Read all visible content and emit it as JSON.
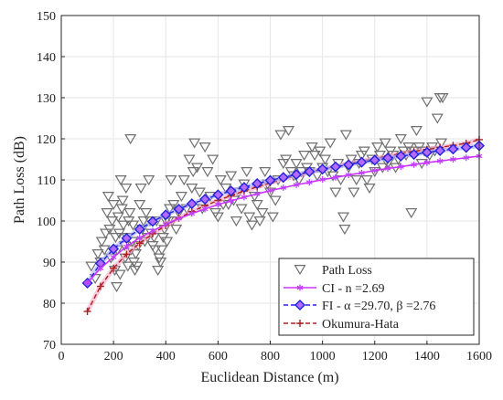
{
  "colors": {
    "path_loss": "#707070",
    "ci": "#cc33ff",
    "ci_marker": "#c040ff",
    "fi": "#2222dd",
    "fi_fill": "#b36bff",
    "fi_halo": "#a8a8ff",
    "okumura": "#aa2222",
    "okumura_halo": "#f4a4c4",
    "grid": "#e6e6e6",
    "axis": "#262626"
  },
  "chart_data": {
    "type": "scatter",
    "title": "",
    "xlabel": "Euclidean Distance (m)",
    "ylabel": "Path Loss (dB)",
    "xlim": [
      0,
      1600
    ],
    "ylim": [
      70,
      150
    ],
    "xticks": [
      "0",
      "200",
      "400",
      "600",
      "800",
      "1000",
      "1200",
      "1400",
      "1600"
    ],
    "yticks": [
      "70",
      "80",
      "90",
      "100",
      "110",
      "120",
      "130",
      "140",
      "150"
    ],
    "grid": true,
    "legend_position": "bottom-right",
    "series": [
      {
        "name": "Path Loss",
        "kind": "scatter",
        "marker": "triangle-down",
        "points": [
          [
            115,
            89
          ],
          [
            130,
            86
          ],
          [
            140,
            92
          ],
          [
            150,
            90
          ],
          [
            155,
            95
          ],
          [
            165,
            93
          ],
          [
            170,
            97
          ],
          [
            175,
            102
          ],
          [
            180,
            106
          ],
          [
            185,
            98
          ],
          [
            190,
            91
          ],
          [
            195,
            100
          ],
          [
            200,
            104
          ],
          [
            205,
            88
          ],
          [
            208,
            96
          ],
          [
            212,
            84
          ],
          [
            215,
            93
          ],
          [
            218,
            101
          ],
          [
            222,
            97
          ],
          [
            225,
            87
          ],
          [
            228,
            110
          ],
          [
            232,
            103
          ],
          [
            235,
            105
          ],
          [
            238,
            99
          ],
          [
            242,
            94
          ],
          [
            245,
            91
          ],
          [
            248,
            108
          ],
          [
            252,
            96
          ],
          [
            255,
            89
          ],
          [
            258,
            100
          ],
          [
            262,
            102
          ],
          [
            265,
            120
          ],
          [
            268,
            93
          ],
          [
            272,
            95
          ],
          [
            275,
            99
          ],
          [
            278,
            90
          ],
          [
            282,
            88
          ],
          [
            285,
            92
          ],
          [
            290,
            89
          ],
          [
            295,
            94
          ],
          [
            300,
            104
          ],
          [
            305,
            108
          ],
          [
            310,
            98
          ],
          [
            315,
            100
          ],
          [
            320,
            95
          ],
          [
            325,
            102
          ],
          [
            330,
            96
          ],
          [
            335,
            110
          ],
          [
            340,
            100
          ],
          [
            345,
            97
          ],
          [
            350,
            94
          ],
          [
            355,
            96
          ],
          [
            360,
            93
          ],
          [
            365,
            100
          ],
          [
            370,
            88
          ],
          [
            375,
            91
          ],
          [
            380,
            90
          ],
          [
            385,
            93
          ],
          [
            390,
            96
          ],
          [
            395,
            98
          ],
          [
            400,
            100
          ],
          [
            405,
            95
          ],
          [
            410,
            100
          ],
          [
            415,
            103
          ],
          [
            420,
            110
          ],
          [
            425,
            100
          ],
          [
            430,
            104
          ],
          [
            440,
            98
          ],
          [
            450,
            102
          ],
          [
            460,
            106
          ],
          [
            470,
            110
          ],
          [
            480,
            103
          ],
          [
            490,
            115
          ],
          [
            500,
            108
          ],
          [
            505,
            112
          ],
          [
            510,
            119
          ],
          [
            520,
            113
          ],
          [
            530,
            107
          ],
          [
            540,
            103
          ],
          [
            550,
            118
          ],
          [
            560,
            112
          ],
          [
            570,
            106
          ],
          [
            580,
            115
          ],
          [
            590,
            102
          ],
          [
            600,
            101
          ],
          [
            610,
            110
          ],
          [
            620,
            104
          ],
          [
            630,
            108
          ],
          [
            640,
            104
          ],
          [
            650,
            111
          ],
          [
            660,
            105
          ],
          [
            670,
            100
          ],
          [
            680,
            107
          ],
          [
            690,
            103
          ],
          [
            700,
            109
          ],
          [
            710,
            112
          ],
          [
            720,
            101
          ],
          [
            730,
            99
          ],
          [
            740,
            106
          ],
          [
            750,
            104
          ],
          [
            760,
            100
          ],
          [
            770,
            102
          ],
          [
            780,
            112
          ],
          [
            790,
            109
          ],
          [
            800,
            107
          ],
          [
            810,
            101
          ],
          [
            820,
            105
          ],
          [
            830,
            110
          ],
          [
            840,
            121
          ],
          [
            850,
            114
          ],
          [
            860,
            115
          ],
          [
            870,
            122
          ],
          [
            880,
            112
          ],
          [
            890,
            111
          ],
          [
            900,
            114
          ],
          [
            910,
            110
          ],
          [
            920,
            112
          ],
          [
            930,
            116
          ],
          [
            940,
            113
          ],
          [
            950,
            112
          ],
          [
            960,
            118
          ],
          [
            970,
            116
          ],
          [
            980,
            111
          ],
          [
            990,
            117
          ],
          [
            1000,
            113
          ],
          [
            1010,
            115
          ],
          [
            1020,
            112
          ],
          [
            1030,
            119
          ],
          [
            1040,
            111
          ],
          [
            1050,
            107
          ],
          [
            1060,
            114
          ],
          [
            1070,
            110
          ],
          [
            1080,
            101
          ],
          [
            1085,
            98
          ],
          [
            1090,
            121
          ],
          [
            1100,
            113
          ],
          [
            1110,
            115
          ],
          [
            1120,
            107
          ],
          [
            1130,
            110
          ],
          [
            1140,
            114
          ],
          [
            1150,
            116
          ],
          [
            1160,
            117
          ],
          [
            1170,
            110
          ],
          [
            1180,
            108
          ],
          [
            1190,
            115
          ],
          [
            1200,
            112
          ],
          [
            1210,
            118
          ],
          [
            1220,
            116
          ],
          [
            1230,
            113
          ],
          [
            1240,
            119
          ],
          [
            1250,
            114
          ],
          [
            1260,
            117
          ],
          [
            1270,
            116
          ],
          [
            1280,
            113
          ],
          [
            1290,
            115
          ],
          [
            1300,
            120
          ],
          [
            1310,
            117
          ],
          [
            1320,
            116
          ],
          [
            1330,
            118
          ],
          [
            1340,
            102
          ],
          [
            1350,
            117
          ],
          [
            1360,
            122
          ],
          [
            1370,
            118
          ],
          [
            1380,
            114
          ],
          [
            1390,
            117
          ],
          [
            1400,
            129
          ],
          [
            1410,
            116
          ],
          [
            1420,
            118
          ],
          [
            1430,
            117
          ],
          [
            1440,
            125
          ],
          [
            1450,
            130
          ],
          [
            1455,
            119
          ],
          [
            1460,
            130
          ]
        ]
      },
      {
        "name": "CI - n =2.69",
        "kind": "line",
        "marker": "asterisk",
        "points": [
          [
            100,
            85
          ],
          [
            150,
            88.5
          ],
          [
            200,
            91.2
          ],
          [
            250,
            93.8
          ],
          [
            300,
            95.9
          ],
          [
            350,
            97.6
          ],
          [
            400,
            99.2
          ],
          [
            450,
            100.6
          ],
          [
            500,
            101.8
          ],
          [
            550,
            102.9
          ],
          [
            600,
            104
          ],
          [
            650,
            104.9
          ],
          [
            700,
            105.8
          ],
          [
            750,
            106.6
          ],
          [
            800,
            107.4
          ],
          [
            850,
            108.1
          ],
          [
            900,
            108.8
          ],
          [
            950,
            109.4
          ],
          [
            1000,
            110.1
          ],
          [
            1050,
            110.6
          ],
          [
            1100,
            111.2
          ],
          [
            1150,
            111.7
          ],
          [
            1200,
            112.3
          ],
          [
            1250,
            112.8
          ],
          [
            1300,
            113.2
          ],
          [
            1350,
            113.7
          ],
          [
            1400,
            114.2
          ],
          [
            1450,
            114.6
          ],
          [
            1500,
            115
          ],
          [
            1550,
            115.4
          ],
          [
            1600,
            115.8
          ]
        ]
      },
      {
        "name": "FI - α =29.70, β =2.76",
        "kind": "line",
        "marker": "diamond",
        "points": [
          [
            100,
            84.9
          ],
          [
            150,
            89.7
          ],
          [
            200,
            93.2
          ],
          [
            250,
            95.8
          ],
          [
            300,
            98
          ],
          [
            350,
            99.9
          ],
          [
            400,
            101.5
          ],
          [
            450,
            102.9
          ],
          [
            500,
            104.2
          ],
          [
            550,
            105.3
          ],
          [
            600,
            106.4
          ],
          [
            650,
            107.3
          ],
          [
            700,
            108.2
          ],
          [
            750,
            109.1
          ],
          [
            800,
            109.9
          ],
          [
            850,
            110.6
          ],
          [
            900,
            111.3
          ],
          [
            950,
            112
          ],
          [
            1000,
            112.6
          ],
          [
            1050,
            113.2
          ],
          [
            1100,
            113.7
          ],
          [
            1150,
            114.3
          ],
          [
            1200,
            114.8
          ],
          [
            1250,
            115.3
          ],
          [
            1300,
            115.8
          ],
          [
            1350,
            116.2
          ],
          [
            1400,
            116.7
          ],
          [
            1450,
            117.1
          ],
          [
            1500,
            117.5
          ],
          [
            1550,
            117.9
          ],
          [
            1600,
            118.3
          ]
        ]
      },
      {
        "name": "Okumura-Hata",
        "kind": "line",
        "marker": "plus",
        "points": [
          [
            100,
            78
          ],
          [
            150,
            84.1
          ],
          [
            200,
            88.5
          ],
          [
            250,
            91.9
          ],
          [
            300,
            94.6
          ],
          [
            350,
            96.9
          ],
          [
            400,
            98.9
          ],
          [
            450,
            100.7
          ],
          [
            500,
            102.3
          ],
          [
            550,
            103.7
          ],
          [
            600,
            105
          ],
          [
            650,
            106.2
          ],
          [
            700,
            107.3
          ],
          [
            750,
            108.3
          ],
          [
            800,
            109.3
          ],
          [
            850,
            110.2
          ],
          [
            900,
            111
          ],
          [
            950,
            111.8
          ],
          [
            1000,
            112.6
          ],
          [
            1050,
            113.3
          ],
          [
            1100,
            114
          ],
          [
            1150,
            114.6
          ],
          [
            1200,
            115.2
          ],
          [
            1250,
            115.8
          ],
          [
            1300,
            116.4
          ],
          [
            1350,
            116.9
          ],
          [
            1400,
            117.4
          ],
          [
            1450,
            117.9
          ],
          [
            1500,
            118.4
          ],
          [
            1550,
            118.9
          ],
          [
            1600,
            119.8
          ]
        ]
      }
    ]
  }
}
